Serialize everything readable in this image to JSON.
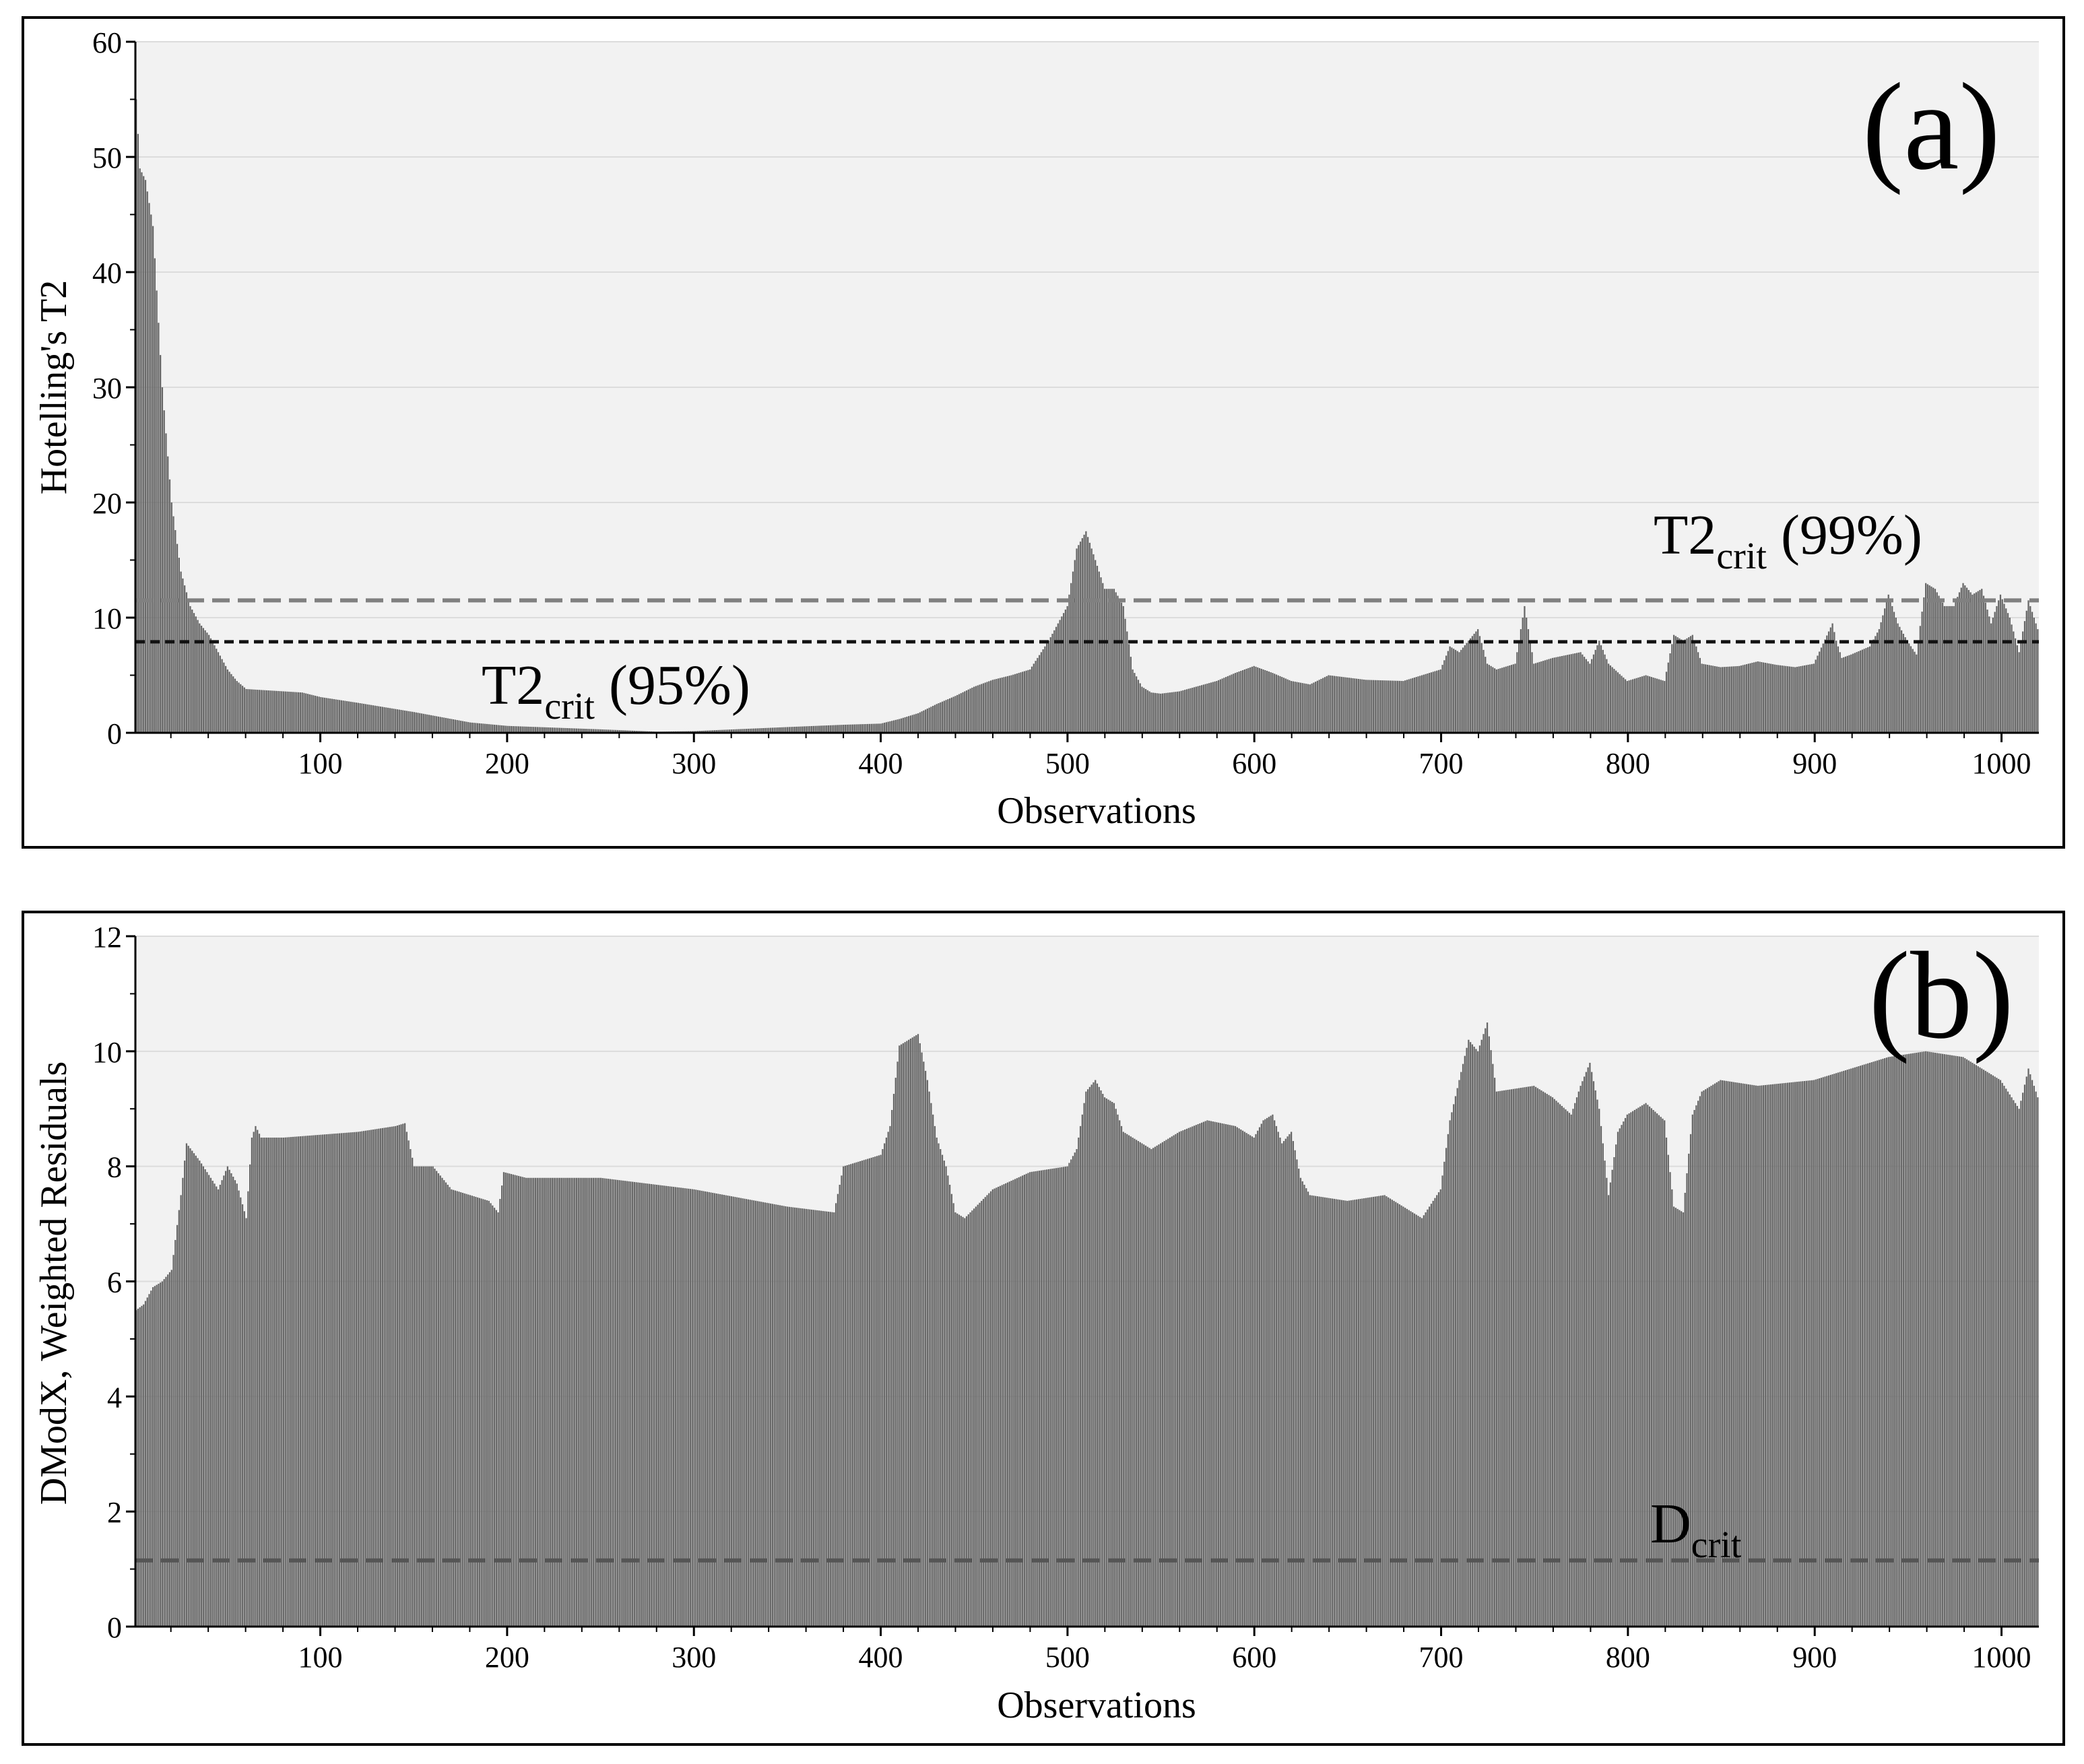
{
  "chart_data": [
    {
      "type": "bar",
      "panel_label": "(a)",
      "ylabel": "Hotelling's T2",
      "xlabel": "Observations",
      "xlim": [
        1,
        1020
      ],
      "ylim": [
        0,
        60
      ],
      "y_ticks": [
        0,
        10,
        20,
        30,
        40,
        50,
        60
      ],
      "x_ticks": [
        100,
        200,
        300,
        400,
        500,
        600,
        700,
        800,
        900,
        1000
      ],
      "grid": true,
      "series": [
        {
          "name": "Hotelling's T2",
          "color": "#676767",
          "x": [
            1,
            3,
            6,
            10,
            15,
            20,
            25,
            30,
            35,
            40,
            45,
            50,
            55,
            60,
            70,
            90,
            100,
            120,
            150,
            180,
            200,
            250,
            280,
            300,
            350,
            380,
            400,
            410,
            420,
            430,
            440,
            450,
            460,
            470,
            480,
            490,
            495,
            500,
            505,
            510,
            515,
            520,
            525,
            530,
            535,
            540,
            545,
            550,
            560,
            580,
            590,
            600,
            610,
            620,
            630,
            640,
            650,
            660,
            680,
            700,
            705,
            710,
            715,
            720,
            725,
            730,
            740,
            745,
            750,
            760,
            775,
            780,
            785,
            790,
            800,
            810,
            820,
            825,
            830,
            835,
            840,
            850,
            860,
            870,
            880,
            890,
            900,
            910,
            912,
            915,
            920,
            930,
            935,
            940,
            945,
            950,
            955,
            960,
            965,
            970,
            975,
            980,
            985,
            990,
            995,
            1000,
            1005,
            1010,
            1015,
            1020
          ],
          "values": [
            55,
            49,
            48,
            44,
            30,
            20,
            14,
            11,
            9.5,
            8.5,
            7,
            5.5,
            4.5,
            3.8,
            3.7,
            3.5,
            3.1,
            2.6,
            1.8,
            0.9,
            0.6,
            0.3,
            0.1,
            0.15,
            0.5,
            0.7,
            0.8,
            1.2,
            1.7,
            2.5,
            3.2,
            4,
            4.6,
            5,
            5.5,
            8,
            9.5,
            11,
            16,
            17.5,
            15,
            12.5,
            12.5,
            11,
            5.5,
            4,
            3.5,
            3.4,
            3.6,
            4.5,
            5.2,
            5.8,
            5.2,
            4.5,
            4.2,
            5,
            4.8,
            4.6,
            4.5,
            5.5,
            7.5,
            7,
            8,
            9,
            6,
            5.5,
            6,
            11,
            6,
            6.5,
            7,
            6,
            8,
            6,
            4.5,
            5,
            4.5,
            8.5,
            8,
            8.5,
            6,
            5.7,
            5.8,
            6.2,
            5.9,
            5.7,
            6,
            9.5,
            8,
            6.5,
            6.8,
            7.5,
            9,
            12,
            9.5,
            8,
            6.8,
            13,
            12.5,
            11,
            11,
            13,
            12,
            12.5,
            9.5,
            12,
            10,
            7,
            11.5,
            9
          ]
        }
      ],
      "annotations": [
        {
          "name": "T2crit (95%)",
          "base": "T2",
          "sub": "crit",
          "suffix": " (95%)",
          "y": 7.9,
          "style": "dashed",
          "color": "#111111"
        },
        {
          "name": "T2crit (99%)",
          "base": "T2",
          "sub": "crit",
          "suffix": " (99%)",
          "y": 11.5,
          "style": "dashed",
          "color": "#808080"
        }
      ]
    },
    {
      "type": "bar",
      "panel_label": "(b)",
      "ylabel": "DModX, Weighted Residuals",
      "xlabel": "Observations",
      "xlim": [
        1,
        1020
      ],
      "ylim": [
        0,
        12
      ],
      "y_ticks": [
        0,
        2,
        4,
        6,
        8,
        10,
        12
      ],
      "x_ticks": [
        100,
        200,
        300,
        400,
        500,
        600,
        700,
        800,
        900,
        1000
      ],
      "grid": true,
      "series": [
        {
          "name": "DModX",
          "color": "#676767",
          "x": [
            1,
            5,
            10,
            15,
            20,
            25,
            28,
            35,
            45,
            50,
            55,
            60,
            63,
            65,
            68,
            80,
            100,
            120,
            140,
            145,
            150,
            160,
            170,
            190,
            195,
            198,
            210,
            250,
            300,
            350,
            375,
            380,
            390,
            400,
            405,
            410,
            415,
            420,
            425,
            430,
            435,
            440,
            445,
            460,
            480,
            500,
            505,
            510,
            515,
            520,
            525,
            530,
            545,
            560,
            575,
            590,
            600,
            605,
            610,
            615,
            620,
            625,
            630,
            650,
            670,
            690,
            700,
            705,
            710,
            715,
            720,
            725,
            730,
            750,
            760,
            770,
            775,
            780,
            785,
            790,
            795,
            800,
            810,
            820,
            825,
            830,
            835,
            840,
            850,
            870,
            900,
            920,
            940,
            960,
            980,
            1000,
            1010,
            1015,
            1020
          ],
          "values": [
            5.5,
            5.6,
            5.9,
            6,
            6.2,
            7.5,
            8.4,
            8.1,
            7.6,
            8,
            7.7,
            7.1,
            8.5,
            8.7,
            8.5,
            8.5,
            8.55,
            8.6,
            8.7,
            8.75,
            8,
            8,
            7.6,
            7.4,
            7.2,
            7.9,
            7.8,
            7.8,
            7.6,
            7.3,
            7.2,
            8,
            8.1,
            8.2,
            8.7,
            10.1,
            10.2,
            10.3,
            9.5,
            8.5,
            8,
            7.2,
            7.1,
            7.6,
            7.9,
            8,
            8.3,
            9.3,
            9.5,
            9.2,
            9.1,
            8.6,
            8.3,
            8.6,
            8.8,
            8.7,
            8.5,
            8.8,
            8.9,
            8.4,
            8.6,
            7.8,
            7.5,
            7.4,
            7.5,
            7.1,
            7.6,
            8.8,
            9.5,
            10.2,
            10,
            10.5,
            9.3,
            9.4,
            9.2,
            8.9,
            9.4,
            9.8,
            9,
            7.5,
            8.6,
            8.9,
            9.1,
            8.8,
            7.3,
            7.2,
            8.9,
            9.3,
            9.5,
            9.4,
            9.5,
            9.7,
            9.9,
            10,
            9.9,
            9.5,
            9,
            9.7,
            9.2
          ]
        }
      ],
      "annotations": [
        {
          "name": "Dcrit",
          "base": "D",
          "sub": "crit",
          "suffix": "",
          "y": 1.15,
          "style": "dashed",
          "color": "#555555"
        }
      ]
    }
  ]
}
